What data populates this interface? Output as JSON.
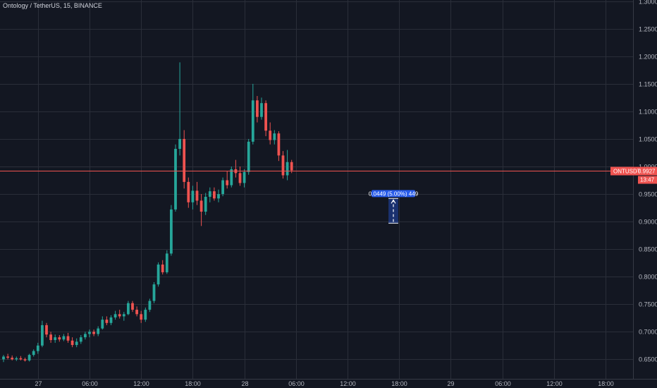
{
  "header": {
    "title": "Ontology / TetherUS, 15, BINANCE"
  },
  "price_tag": {
    "symbol": "ONTUSDT",
    "price": "0.9927",
    "countdown": "13:47"
  },
  "measure": {
    "label": "0.0449 (5.00%) 449",
    "from": 0.897,
    "to": 0.9419,
    "x_start": 22.38,
    "x_end": 22.95
  },
  "colors": {
    "background": "#131722",
    "grid": "#2a2e39",
    "up": "#26a69a",
    "down": "#ef5350",
    "price_line": "#ef5350",
    "measure_fill": "#2962ff"
  },
  "chart_data": {
    "type": "candlestick",
    "title": "Ontology / TetherUS, 15, BINANCE",
    "ylim": [
      0.625,
      1.3
    ],
    "xlim": [
      0,
      36
    ],
    "y_ticks": [
      "0.6500",
      "0.7000",
      "0.7500",
      "0.8000",
      "0.8500",
      "0.9000",
      "0.9500",
      "1.0000",
      "1.0500",
      "1.1000",
      "1.1500",
      "1.2000",
      "1.2500",
      "1.3000"
    ],
    "x_ticks": [
      {
        "label": "27",
        "x": 2
      },
      {
        "label": "06:00",
        "x": 5
      },
      {
        "label": "12:00",
        "x": 8
      },
      {
        "label": "18:00",
        "x": 11
      },
      {
        "label": "28",
        "x": 14
      },
      {
        "label": "06:00",
        "x": 17
      },
      {
        "label": "12:00",
        "x": 20
      },
      {
        "label": "18:00",
        "x": 23
      },
      {
        "label": "29",
        "x": 26
      },
      {
        "label": "06:00",
        "x": 29
      },
      {
        "label": "12:00",
        "x": 32
      },
      {
        "label": "18:00",
        "x": 35
      }
    ],
    "current_price": 0.9927,
    "candles": [
      {
        "x": 0.0,
        "o": 0.65,
        "h": 0.658,
        "l": 0.645,
        "c": 0.655
      },
      {
        "x": 0.25,
        "o": 0.655,
        "h": 0.66,
        "l": 0.65,
        "c": 0.653
      },
      {
        "x": 0.5,
        "o": 0.653,
        "h": 0.657,
        "l": 0.648,
        "c": 0.65
      },
      {
        "x": 0.75,
        "o": 0.65,
        "h": 0.655,
        "l": 0.647,
        "c": 0.652
      },
      {
        "x": 1.0,
        "o": 0.652,
        "h": 0.656,
        "l": 0.648,
        "c": 0.65
      },
      {
        "x": 1.25,
        "o": 0.65,
        "h": 0.653,
        "l": 0.646,
        "c": 0.648
      },
      {
        "x": 1.5,
        "o": 0.648,
        "h": 0.66,
        "l": 0.646,
        "c": 0.658
      },
      {
        "x": 1.75,
        "o": 0.658,
        "h": 0.668,
        "l": 0.655,
        "c": 0.665
      },
      {
        "x": 2.0,
        "o": 0.665,
        "h": 0.68,
        "l": 0.66,
        "c": 0.675
      },
      {
        "x": 2.25,
        "o": 0.675,
        "h": 0.72,
        "l": 0.672,
        "c": 0.712
      },
      {
        "x": 2.5,
        "o": 0.712,
        "h": 0.716,
        "l": 0.69,
        "c": 0.695
      },
      {
        "x": 2.75,
        "o": 0.695,
        "h": 0.7,
        "l": 0.68,
        "c": 0.685
      },
      {
        "x": 3.0,
        "o": 0.685,
        "h": 0.695,
        "l": 0.68,
        "c": 0.69
      },
      {
        "x": 3.25,
        "o": 0.69,
        "h": 0.694,
        "l": 0.682,
        "c": 0.686
      },
      {
        "x": 3.5,
        "o": 0.686,
        "h": 0.696,
        "l": 0.683,
        "c": 0.692
      },
      {
        "x": 3.75,
        "o": 0.692,
        "h": 0.698,
        "l": 0.68,
        "c": 0.684
      },
      {
        "x": 4.0,
        "o": 0.684,
        "h": 0.69,
        "l": 0.672,
        "c": 0.676
      },
      {
        "x": 4.25,
        "o": 0.676,
        "h": 0.688,
        "l": 0.672,
        "c": 0.682
      },
      {
        "x": 4.5,
        "o": 0.682,
        "h": 0.694,
        "l": 0.678,
        "c": 0.69
      },
      {
        "x": 4.75,
        "o": 0.69,
        "h": 0.7,
        "l": 0.686,
        "c": 0.696
      },
      {
        "x": 5.0,
        "o": 0.696,
        "h": 0.704,
        "l": 0.69,
        "c": 0.7
      },
      {
        "x": 5.25,
        "o": 0.7,
        "h": 0.704,
        "l": 0.692,
        "c": 0.696
      },
      {
        "x": 5.5,
        "o": 0.696,
        "h": 0.71,
        "l": 0.692,
        "c": 0.706
      },
      {
        "x": 5.75,
        "o": 0.706,
        "h": 0.728,
        "l": 0.704,
        "c": 0.722
      },
      {
        "x": 6.0,
        "o": 0.722,
        "h": 0.728,
        "l": 0.712,
        "c": 0.716
      },
      {
        "x": 6.25,
        "o": 0.716,
        "h": 0.73,
        "l": 0.712,
        "c": 0.726
      },
      {
        "x": 6.5,
        "o": 0.726,
        "h": 0.738,
        "l": 0.722,
        "c": 0.732
      },
      {
        "x": 6.75,
        "o": 0.732,
        "h": 0.74,
        "l": 0.724,
        "c": 0.728
      },
      {
        "x": 7.0,
        "o": 0.728,
        "h": 0.736,
        "l": 0.72,
        "c": 0.732
      },
      {
        "x": 7.25,
        "o": 0.732,
        "h": 0.756,
        "l": 0.73,
        "c": 0.752
      },
      {
        "x": 7.5,
        "o": 0.752,
        "h": 0.756,
        "l": 0.736,
        "c": 0.74
      },
      {
        "x": 7.75,
        "o": 0.74,
        "h": 0.746,
        "l": 0.728,
        "c": 0.732
      },
      {
        "x": 8.0,
        "o": 0.732,
        "h": 0.738,
        "l": 0.716,
        "c": 0.722
      },
      {
        "x": 8.25,
        "o": 0.722,
        "h": 0.744,
        "l": 0.718,
        "c": 0.74
      },
      {
        "x": 8.5,
        "o": 0.74,
        "h": 0.76,
        "l": 0.736,
        "c": 0.756
      },
      {
        "x": 8.75,
        "o": 0.756,
        "h": 0.79,
        "l": 0.752,
        "c": 0.786
      },
      {
        "x": 9.0,
        "o": 0.786,
        "h": 0.826,
        "l": 0.782,
        "c": 0.822
      },
      {
        "x": 9.25,
        "o": 0.822,
        "h": 0.83,
        "l": 0.804,
        "c": 0.808
      },
      {
        "x": 9.5,
        "o": 0.808,
        "h": 0.848,
        "l": 0.805,
        "c": 0.842
      },
      {
        "x": 9.75,
        "o": 0.842,
        "h": 0.93,
        "l": 0.838,
        "c": 0.922
      },
      {
        "x": 10.0,
        "o": 0.922,
        "h": 1.04,
        "l": 0.918,
        "c": 1.032
      },
      {
        "x": 10.25,
        "o": 1.032,
        "h": 1.189,
        "l": 1.02,
        "c": 1.05
      },
      {
        "x": 10.5,
        "o": 1.05,
        "h": 1.066,
        "l": 0.96,
        "c": 0.972
      },
      {
        "x": 10.75,
        "o": 0.972,
        "h": 0.98,
        "l": 0.925,
        "c": 0.935
      },
      {
        "x": 11.0,
        "o": 0.935,
        "h": 0.965,
        "l": 0.922,
        "c": 0.956
      },
      {
        "x": 11.25,
        "o": 0.956,
        "h": 0.972,
        "l": 0.93,
        "c": 0.938
      },
      {
        "x": 11.5,
        "o": 0.938,
        "h": 0.95,
        "l": 0.892,
        "c": 0.918
      },
      {
        "x": 11.75,
        "o": 0.918,
        "h": 0.952,
        "l": 0.912,
        "c": 0.945
      },
      {
        "x": 12.0,
        "o": 0.945,
        "h": 0.962,
        "l": 0.935,
        "c": 0.955
      },
      {
        "x": 12.25,
        "o": 0.955,
        "h": 0.962,
        "l": 0.938,
        "c": 0.942
      },
      {
        "x": 12.5,
        "o": 0.942,
        "h": 0.958,
        "l": 0.935,
        "c": 0.95
      },
      {
        "x": 12.75,
        "o": 0.95,
        "h": 0.98,
        "l": 0.946,
        "c": 0.975
      },
      {
        "x": 13.0,
        "o": 0.975,
        "h": 0.992,
        "l": 0.96,
        "c": 0.966
      },
      {
        "x": 13.25,
        "o": 0.966,
        "h": 1.0,
        "l": 0.962,
        "c": 0.995
      },
      {
        "x": 13.5,
        "o": 0.995,
        "h": 1.012,
        "l": 0.98,
        "c": 0.988
      },
      {
        "x": 13.75,
        "o": 0.988,
        "h": 1.0,
        "l": 0.965,
        "c": 0.97
      },
      {
        "x": 14.0,
        "o": 0.97,
        "h": 0.995,
        "l": 0.962,
        "c": 0.99
      },
      {
        "x": 14.25,
        "o": 0.99,
        "h": 1.05,
        "l": 0.985,
        "c": 1.045
      },
      {
        "x": 14.5,
        "o": 1.045,
        "h": 1.15,
        "l": 1.04,
        "c": 1.12
      },
      {
        "x": 14.75,
        "o": 1.12,
        "h": 1.128,
        "l": 1.08,
        "c": 1.09
      },
      {
        "x": 15.0,
        "o": 1.09,
        "h": 1.125,
        "l": 1.085,
        "c": 1.115
      },
      {
        "x": 15.25,
        "o": 1.115,
        "h": 1.12,
        "l": 1.055,
        "c": 1.065
      },
      {
        "x": 15.5,
        "o": 1.065,
        "h": 1.08,
        "l": 1.04,
        "c": 1.048
      },
      {
        "x": 15.75,
        "o": 1.048,
        "h": 1.066,
        "l": 1.04,
        "c": 1.06
      },
      {
        "x": 16.0,
        "o": 1.06,
        "h": 1.064,
        "l": 1.01,
        "c": 1.02
      },
      {
        "x": 16.25,
        "o": 1.02,
        "h": 1.028,
        "l": 0.978,
        "c": 0.984
      },
      {
        "x": 16.5,
        "o": 0.984,
        "h": 1.03,
        "l": 0.975,
        "c": 1.008
      },
      {
        "x": 16.75,
        "o": 1.008,
        "h": 1.012,
        "l": 0.988,
        "c": 0.993
      }
    ]
  }
}
